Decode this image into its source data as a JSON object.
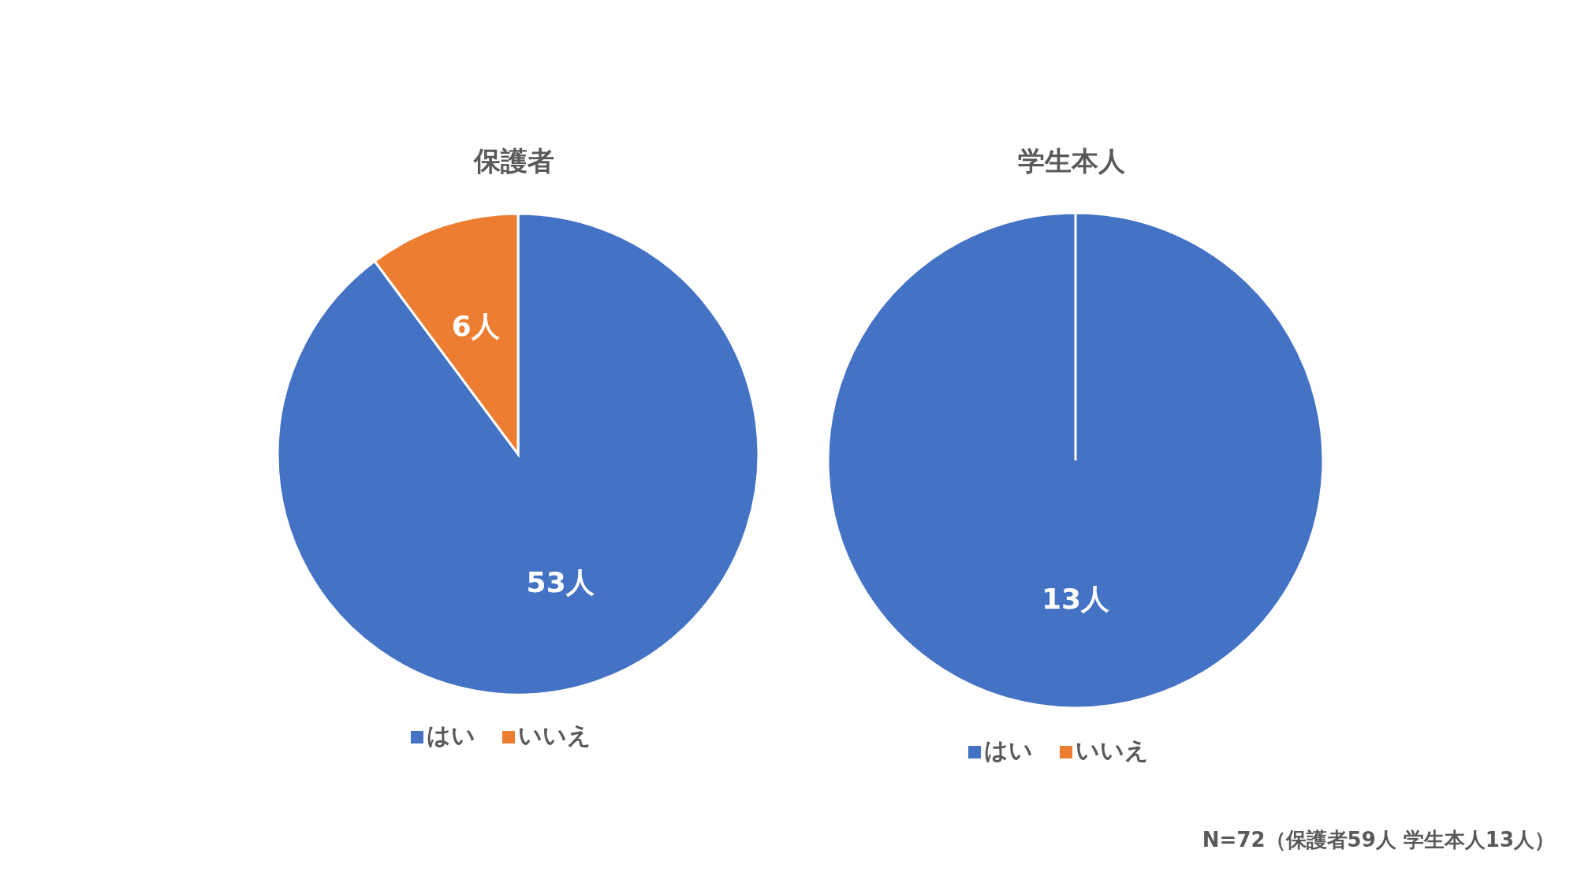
{
  "chart_data": [
    {
      "type": "pie",
      "title": "保護者",
      "categories": [
        "はい",
        "いいえ"
      ],
      "values": [
        53,
        6
      ],
      "colors": [
        "#4472c4",
        "#ed7d31"
      ],
      "value_labels": [
        "53人",
        "6人"
      ],
      "legend": "bottom"
    },
    {
      "type": "pie",
      "title": "学生本人",
      "categories": [
        "はい",
        "いいえ"
      ],
      "values": [
        13,
        0
      ],
      "colors": [
        "#4472c4",
        "#ed7d31"
      ],
      "value_labels": [
        "13人",
        null
      ],
      "legend": "bottom",
      "annotations": [
        "N=72（保護者59人 学生本人13人）"
      ]
    }
  ]
}
